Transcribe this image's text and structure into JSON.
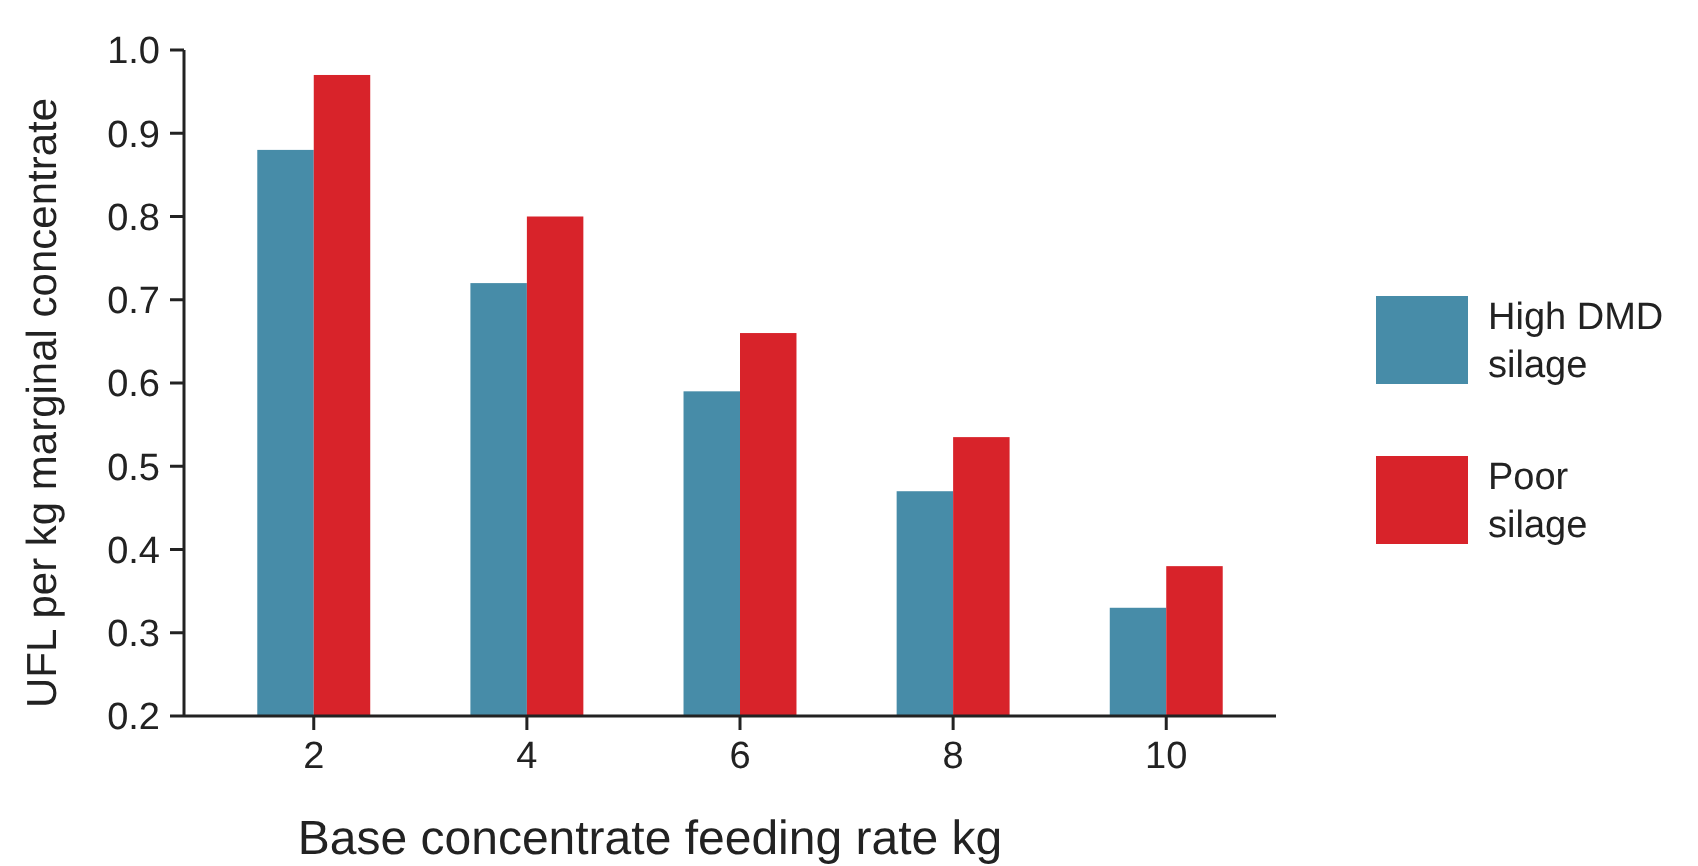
{
  "chart_data": {
    "type": "bar",
    "xlabel": "Base concentrate feeding rate kg",
    "ylabel": "UFL per kg marginal concentrate",
    "categories": [
      "2",
      "4",
      "6",
      "8",
      "10"
    ],
    "series": [
      {
        "name": "High DMD silage",
        "color": "#478ca8",
        "values": [
          0.88,
          0.72,
          0.59,
          0.47,
          0.33
        ]
      },
      {
        "name": "Poor silage",
        "color": "#d8232a",
        "values": [
          0.97,
          0.8,
          0.66,
          0.535,
          0.38
        ]
      }
    ],
    "ylim": [
      0.2,
      1.0
    ],
    "yticks": [
      {
        "value": 0.2,
        "label": "0.2"
      },
      {
        "value": 0.3,
        "label": "0.3"
      },
      {
        "value": 0.4,
        "label": "0.4"
      },
      {
        "value": 0.5,
        "label": "0.5"
      },
      {
        "value": 0.6,
        "label": "0.6"
      },
      {
        "value": 0.7,
        "label": "0.7"
      },
      {
        "value": 0.8,
        "label": "0.8"
      },
      {
        "value": 0.9,
        "label": "0.9"
      },
      {
        "value": 1.0,
        "label": "1.0"
      }
    ],
    "grid": false,
    "legend": "right"
  }
}
